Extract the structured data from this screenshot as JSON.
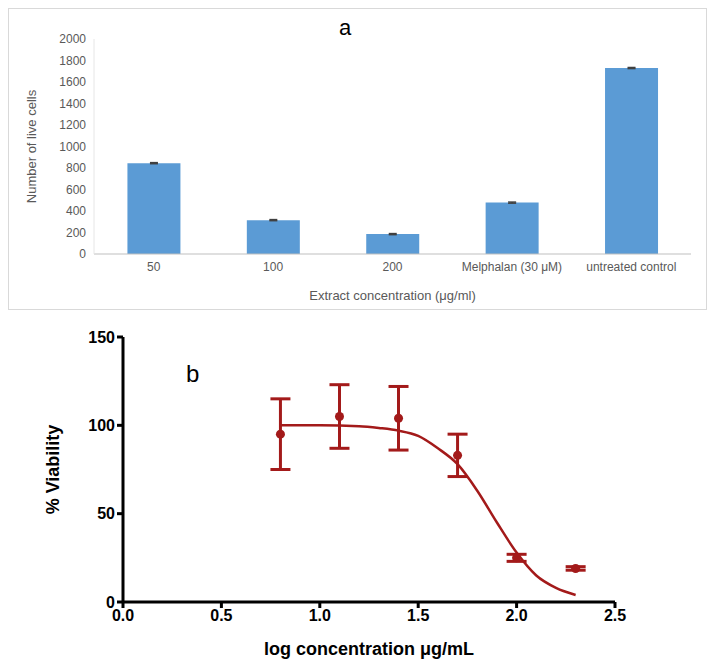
{
  "chart_data": [
    {
      "type": "bar",
      "title": "a",
      "x_label": "Extract concentration (μg/ml)",
      "y_label": "Number of live cells",
      "categories": [
        "50",
        "100",
        "200",
        "Melphalan (30 μM)",
        "untreated control"
      ],
      "values": [
        845,
        315,
        185,
        478,
        1730
      ],
      "errors": [
        5,
        5,
        5,
        5,
        5
      ],
      "color": "#5b9bd5",
      "ylim": [
        0,
        2000
      ],
      "yticks": [
        0,
        200,
        400,
        600,
        800,
        1000,
        1200,
        1400,
        1600,
        1800,
        2000
      ],
      "grid": false
    },
    {
      "type": "scatter",
      "title": "b",
      "x_label": "log concentration μg/mL",
      "y_label": "% Viability",
      "xlim": [
        0,
        2.5
      ],
      "xticks": [
        {
          "value": 0,
          "label": "0.0"
        },
        0.5,
        {
          "value": 1,
          "label": "1.0"
        },
        1.5,
        {
          "value": 2,
          "label": "2.0"
        },
        2.5
      ],
      "ylim": [
        0,
        150
      ],
      "yticks": [
        0,
        50,
        100,
        150
      ],
      "grid": false,
      "series": [
        {
          "type": "scatter",
          "marker": "circle",
          "color": "#a31a1a",
          "x": [
            0.8,
            1.1,
            1.4,
            1.7,
            2.0,
            2.3
          ],
          "values": [
            95,
            105,
            104,
            83,
            25,
            19
          ],
          "errors": [
            20,
            18,
            18,
            12,
            2,
            1
          ]
        },
        {
          "type": "line",
          "line_style": "solid",
          "color": "#a31a1a",
          "x": [
            0.8,
            1.0,
            1.2,
            1.3,
            1.4,
            1.5,
            1.6,
            1.7,
            1.8,
            1.9,
            2.0,
            2.1,
            2.2,
            2.3
          ],
          "values": [
            100,
            100,
            99.5,
            98.5,
            97,
            94,
            87,
            78,
            63,
            45,
            28,
            15,
            8,
            4
          ]
        }
      ]
    }
  ]
}
